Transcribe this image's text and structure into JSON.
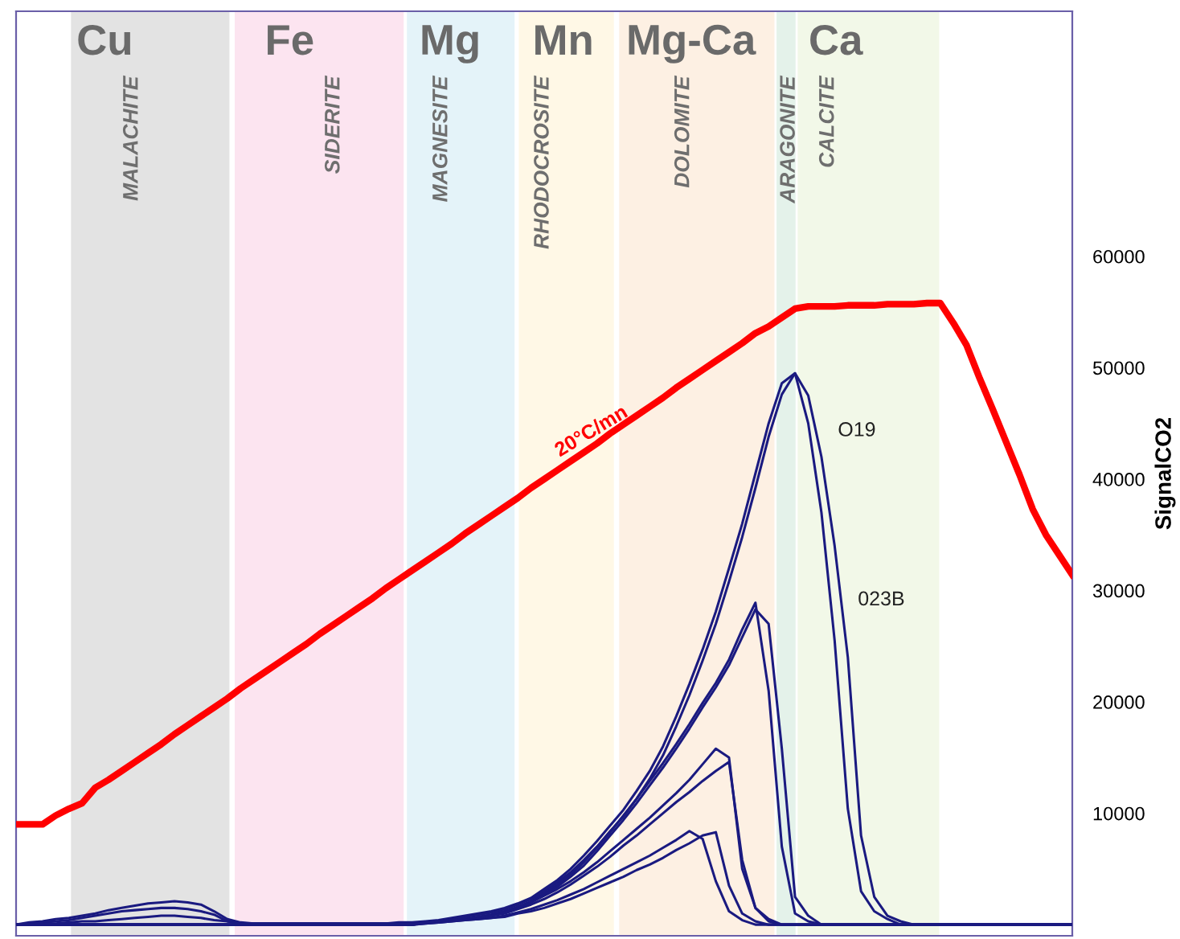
{
  "chart_data": {
    "type": "line",
    "ylabel": "SignalCO2",
    "ylim": [
      -1000,
      82000
    ],
    "yticks": [
      10000,
      20000,
      30000,
      40000,
      50000,
      60000
    ],
    "tick_labels": "y",
    "grid": false,
    "legend": false,
    "marker": "none",
    "line_style": "solid",
    "categories": [
      null,
      null,
      null,
      null,
      null,
      null,
      null,
      null,
      null,
      null,
      null,
      null,
      null,
      null,
      null,
      null,
      null,
      null,
      null,
      null,
      null,
      null,
      null,
      null,
      null,
      null,
      null,
      null,
      null,
      null,
      null,
      null,
      null,
      null,
      null,
      null,
      null,
      null,
      null,
      null,
      null,
      null,
      null,
      null,
      null,
      null,
      null,
      null,
      null,
      null,
      null,
      null,
      null,
      null,
      null,
      null,
      null,
      null,
      null,
      null,
      null,
      null,
      null,
      null,
      null,
      null,
      null,
      null,
      null,
      null,
      null,
      null,
      null,
      null,
      null,
      null,
      null,
      null,
      null,
      null,
      null
    ],
    "annotations": [
      "Cu",
      "Fe",
      "Mg",
      "Mn",
      "Mg-Ca",
      "Ca",
      "20°C/mn",
      "O19",
      "023B",
      "MALACHITE",
      "SIDERITE",
      "MAGNESITE",
      "RHODOCROSITE",
      "DOLOMITE",
      "ARAGONITE",
      "CALCITE"
    ],
    "series": [
      {
        "color": "#ff0000",
        "values": [
          9000,
          9000,
          9000,
          9800,
          10400,
          10900,
          12300,
          13000,
          13800,
          14600,
          15400,
          16200,
          17100,
          17900,
          18700,
          19500,
          20300,
          21200,
          22000,
          22800,
          23600,
          24400,
          25200,
          26100,
          26900,
          27700,
          28500,
          29300,
          30200,
          31000,
          31800,
          32600,
          33400,
          34200,
          35100,
          35900,
          36700,
          37500,
          38300,
          39200,
          40000,
          40800,
          41600,
          42400,
          43200,
          44100,
          44900,
          45700,
          46500,
          47300,
          48200,
          49000,
          49800,
          50600,
          51400,
          52200,
          53100,
          53700,
          54500,
          55300,
          55500,
          55500,
          55500,
          55600,
          55600,
          55600,
          55700,
          55700,
          55700,
          55800,
          55800,
          54000,
          52000,
          49000,
          46200,
          43300,
          40400,
          37300,
          35000,
          33200,
          31400
        ]
      },
      {
        "color": "#1a1a80",
        "values": [
          0,
          200,
          300,
          500,
          600,
          800,
          1000,
          1300,
          1500,
          1700,
          1900,
          2000,
          2100,
          2000,
          1800,
          1200,
          500,
          200,
          100,
          100,
          100,
          100,
          100,
          100,
          100,
          100,
          100,
          100,
          100,
          200,
          200,
          300,
          400,
          600,
          800,
          1000,
          1200,
          1500,
          1900,
          2400,
          3200,
          4000,
          5000,
          6200,
          7500,
          8900,
          10300,
          12000,
          13800,
          16000,
          18700,
          21600,
          24700,
          28100,
          32000,
          36000,
          40500,
          45000,
          48600,
          49500,
          45000,
          37000,
          25500,
          10400,
          3000,
          1200,
          500,
          0,
          0,
          0,
          0,
          0,
          0,
          0,
          0,
          0,
          0,
          0,
          0,
          0,
          0
        ]
      },
      {
        "color": "#1a1a80",
        "values": [
          0,
          100,
          200,
          300,
          400,
          600,
          800,
          1000,
          1200,
          1300,
          1400,
          1500,
          1500,
          1400,
          1200,
          900,
          300,
          100,
          100,
          100,
          100,
          100,
          100,
          100,
          100,
          100,
          100,
          100,
          100,
          100,
          100,
          200,
          300,
          500,
          700,
          900,
          1100,
          1400,
          1800,
          2300,
          3000,
          3800,
          4700,
          5800,
          7000,
          8400,
          9700,
          11300,
          13100,
          15200,
          17800,
          20600,
          23700,
          27000,
          30800,
          34800,
          39200,
          43800,
          47600,
          49500,
          47500,
          42000,
          34000,
          24000,
          8000,
          2500,
          800,
          300,
          0,
          0,
          0,
          0,
          0,
          0,
          0,
          0,
          0,
          0,
          0,
          0,
          0
        ]
      },
      {
        "color": "#1a1a80",
        "values": [
          0,
          0,
          100,
          100,
          200,
          300,
          300,
          400,
          500,
          600,
          700,
          800,
          800,
          700,
          600,
          400,
          300,
          100,
          100,
          100,
          100,
          100,
          100,
          100,
          100,
          100,
          100,
          100,
          100,
          100,
          100,
          200,
          300,
          400,
          500,
          700,
          900,
          1200,
          1600,
          2100,
          2800,
          3600,
          4500,
          5600,
          6900,
          8300,
          9800,
          11300,
          12900,
          14500,
          16200,
          18000,
          19900,
          21700,
          23800,
          26500,
          28900,
          21000,
          7000,
          1000,
          300,
          0,
          0,
          0,
          0,
          0,
          0,
          0,
          0,
          0,
          0,
          0,
          0,
          0,
          0,
          0,
          0,
          0,
          0,
          0,
          0
        ]
      },
      {
        "color": "#1a1a80",
        "values": [
          0,
          0,
          0,
          0,
          0,
          0,
          0,
          0,
          0,
          0,
          0,
          0,
          0,
          0,
          0,
          0,
          0,
          0,
          0,
          0,
          0,
          0,
          0,
          0,
          0,
          0,
          0,
          0,
          0,
          0,
          0,
          200,
          300,
          400,
          500,
          700,
          900,
          1200,
          1500,
          2000,
          2700,
          3400,
          4300,
          5300,
          6600,
          8000,
          9400,
          10900,
          12500,
          14100,
          15800,
          17600,
          19500,
          21300,
          23300,
          25800,
          28300,
          27000,
          15800,
          2500,
          800,
          0,
          0,
          0,
          0,
          0,
          0,
          0,
          0,
          0,
          0,
          0,
          0,
          0,
          0,
          0,
          0,
          0,
          0,
          0,
          0
        ]
      },
      {
        "color": "#1a1a80",
        "values": [
          0,
          0,
          0,
          0,
          0,
          0,
          0,
          0,
          0,
          0,
          0,
          0,
          0,
          0,
          0,
          0,
          0,
          0,
          0,
          0,
          0,
          0,
          0,
          0,
          0,
          0,
          0,
          0,
          0,
          0,
          0,
          200,
          300,
          400,
          500,
          600,
          800,
          1100,
          1500,
          2000,
          2600,
          3200,
          3900,
          4700,
          5600,
          6600,
          7600,
          8600,
          9600,
          10700,
          11800,
          13000,
          14400,
          15800,
          15000,
          5000,
          1500,
          300,
          0,
          0,
          0,
          0,
          0,
          0,
          0,
          0,
          0,
          0,
          0,
          0,
          0,
          0,
          0,
          0,
          0,
          0,
          0,
          0,
          0,
          0,
          0
        ]
      },
      {
        "color": "#1a1a80",
        "values": [
          0,
          0,
          0,
          0,
          0,
          0,
          0,
          0,
          0,
          0,
          0,
          0,
          0,
          0,
          0,
          0,
          0,
          0,
          0,
          0,
          0,
          0,
          0,
          0,
          0,
          0,
          0,
          0,
          0,
          0,
          0,
          200,
          300,
          400,
          500,
          600,
          800,
          1000,
          1400,
          1800,
          2300,
          2900,
          3600,
          4400,
          5200,
          6100,
          7100,
          8000,
          9000,
          10000,
          11000,
          11900,
          12900,
          13800,
          14600,
          5800,
          1500,
          500,
          0,
          0,
          0,
          0,
          0,
          0,
          0,
          0,
          0,
          0,
          0,
          0,
          0,
          0,
          0,
          0,
          0,
          0,
          0,
          0,
          0,
          0,
          0
        ]
      },
      {
        "color": "#1a1a80",
        "values": [
          0,
          0,
          0,
          0,
          0,
          0,
          0,
          0,
          0,
          0,
          0,
          0,
          0,
          0,
          0,
          0,
          0,
          0,
          0,
          0,
          0,
          0,
          0,
          0,
          0,
          0,
          0,
          0,
          0,
          0,
          0,
          100,
          200,
          300,
          400,
          500,
          600,
          800,
          1100,
          1400,
          1800,
          2200,
          2700,
          3200,
          3800,
          4400,
          5000,
          5600,
          6200,
          6900,
          7600,
          8400,
          7700,
          3900,
          1200,
          400,
          0,
          0,
          0,
          0,
          0,
          0,
          0,
          0,
          0,
          0,
          0,
          0,
          0,
          0,
          0,
          0,
          0,
          0,
          0,
          0,
          0,
          0,
          0,
          0,
          0
        ]
      },
      {
        "color": "#1a1a80",
        "values": [
          0,
          0,
          0,
          0,
          0,
          0,
          0,
          0,
          0,
          0,
          0,
          0,
          0,
          0,
          0,
          0,
          0,
          0,
          0,
          0,
          0,
          0,
          0,
          0,
          0,
          0,
          0,
          0,
          0,
          0,
          0,
          100,
          200,
          300,
          400,
          500,
          600,
          700,
          1000,
          1200,
          1500,
          1900,
          2300,
          2800,
          3300,
          3800,
          4300,
          4900,
          5400,
          6000,
          6700,
          7300,
          8000,
          8300,
          3500,
          1000,
          300,
          0,
          0,
          0,
          0,
          0,
          0,
          0,
          0,
          0,
          0,
          0,
          0,
          0,
          0,
          0,
          0,
          0,
          0,
          0,
          0,
          0,
          0,
          0,
          0
        ]
      }
    ]
  }
}
